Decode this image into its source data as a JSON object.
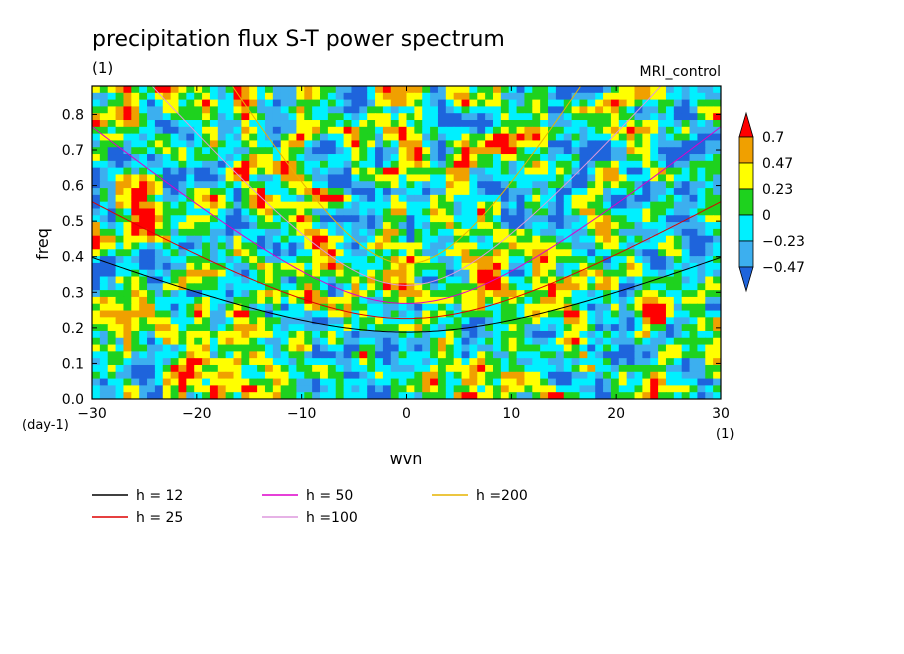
{
  "chart_data": {
    "type": "heatmap",
    "title": "precipitation flux S-T power spectrum",
    "subtitle": "(1)",
    "annotation": "MRI_control",
    "xlabel": "wvn",
    "ylabel": "freq",
    "x_unit": "(1)",
    "y_unit": "(day-1)",
    "xlim": [
      -30,
      30
    ],
    "ylim": [
      0,
      0.88
    ],
    "x_ticks": [
      "-30",
      "-20",
      "-10",
      "0",
      "10",
      "20",
      "30"
    ],
    "y_ticks": [
      "0.0",
      "0.1",
      "0.2",
      "0.3",
      "0.4",
      "0.5",
      "0.6",
      "0.7",
      "0.8"
    ],
    "x_tick_values": [
      -30,
      -20,
      -10,
      0,
      10,
      20,
      30
    ],
    "y_tick_values": [
      0,
      0.1,
      0.2,
      0.3,
      0.4,
      0.5,
      0.6,
      0.7,
      0.8
    ],
    "colorbar": {
      "labels": [
        "0.7",
        "0.47",
        "0.23",
        "0",
        "-0.23",
        "-0.47"
      ],
      "levels": [
        -0.47,
        -0.23,
        0,
        0.23,
        0.47,
        0.7
      ],
      "colors": [
        "#1e64dc",
        "#3cafef",
        "#00f0ff",
        "#1ed21e",
        "#ffff00",
        "#f0a000",
        "#ff0000"
      ]
    },
    "field_note_levels": [
      -0.47,
      -0.23,
      0,
      0.23,
      0.47,
      0.7
    ],
    "series": [
      {
        "name": "h = 12",
        "h": 12,
        "color": "#000000"
      },
      {
        "name": "h = 25",
        "h": 25,
        "color": "#dd0000"
      },
      {
        "name": "h = 50",
        "h": 50,
        "color": "#dd00cc"
      },
      {
        "name": "h =100",
        "h": 100,
        "color": "#dd99dd"
      },
      {
        "name": "h =200",
        "h": 200,
        "color": "#e6b400"
      }
    ]
  }
}
